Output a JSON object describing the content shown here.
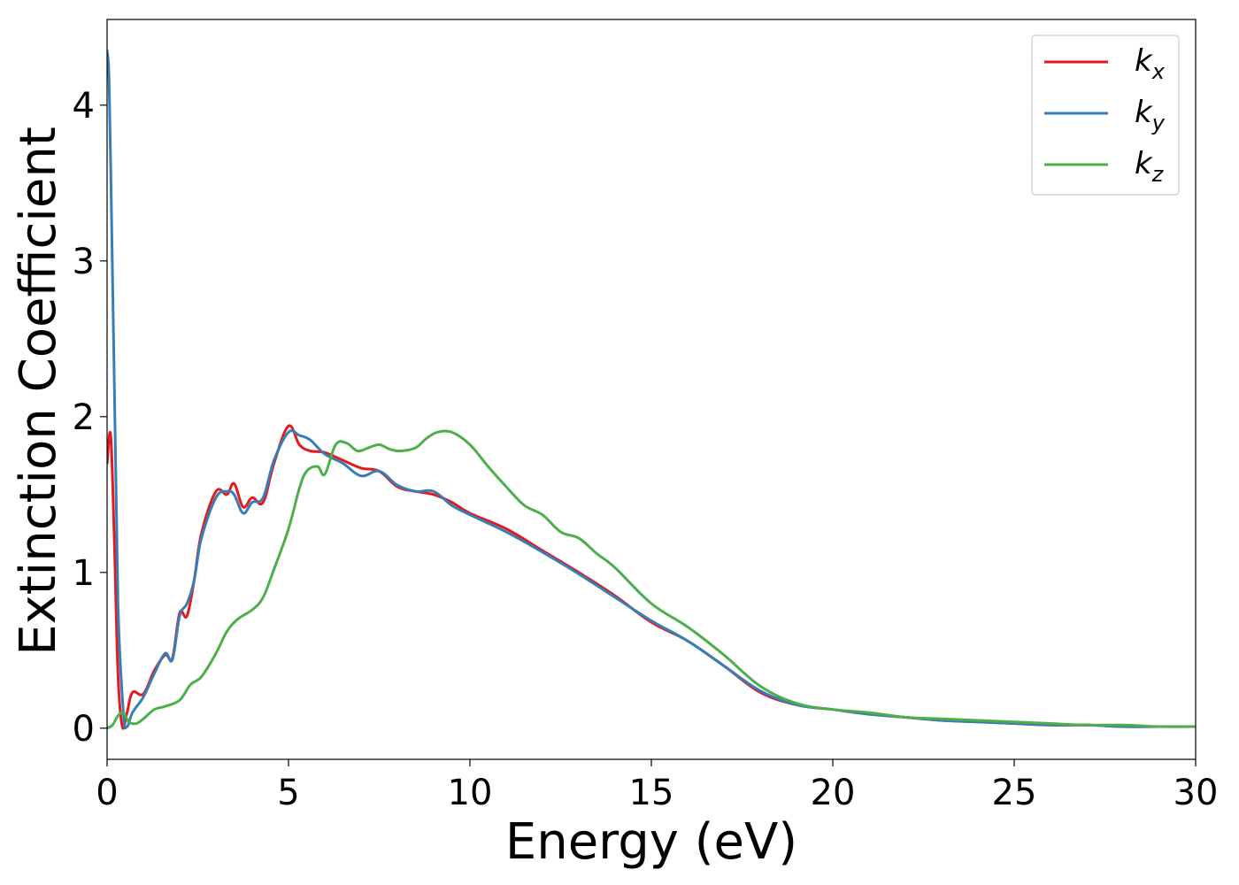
{
  "chart_data": {
    "type": "line",
    "title": "",
    "xlabel": "Energy (eV)",
    "ylabel": "Extinction Coefficient",
    "xlim": [
      0,
      30
    ],
    "ylim": [
      -0.2,
      4.55
    ],
    "xticks": [
      "0",
      "5",
      "10",
      "15",
      "20",
      "25",
      "30"
    ],
    "yticks": [
      "0",
      "1",
      "2",
      "3",
      "4"
    ],
    "grid": false,
    "legend_position": "top-right",
    "series": [
      {
        "name": "k_x",
        "label_base": "k",
        "label_sub": "x",
        "color": "#e41a1c",
        "x": [
          0,
          0.1,
          0.2,
          0.3,
          0.42,
          0.55,
          0.7,
          1.0,
          1.3,
          1.6,
          1.8,
          2.0,
          2.2,
          2.4,
          2.6,
          3.0,
          3.3,
          3.5,
          3.75,
          4.0,
          4.3,
          4.6,
          5.0,
          5.3,
          5.6,
          6.0,
          6.5,
          7.0,
          7.5,
          8.0,
          8.5,
          9.0,
          9.5,
          10.0,
          11.0,
          12.0,
          13.0,
          14.0,
          15.0,
          16.0,
          17.0,
          18.0,
          19.0,
          20.0,
          21.0,
          22.0,
          23.0,
          24.0,
          25.0,
          26.0,
          27.0,
          28.0,
          29.0,
          30.0
        ],
        "y": [
          1.7,
          1.88,
          1.2,
          0.35,
          0.01,
          0.1,
          0.23,
          0.22,
          0.37,
          0.47,
          0.45,
          0.74,
          0.72,
          0.95,
          1.25,
          1.52,
          1.5,
          1.57,
          1.42,
          1.48,
          1.45,
          1.7,
          1.94,
          1.82,
          1.78,
          1.77,
          1.72,
          1.67,
          1.65,
          1.55,
          1.52,
          1.5,
          1.45,
          1.38,
          1.28,
          1.14,
          1.0,
          0.85,
          0.68,
          0.56,
          0.4,
          0.23,
          0.15,
          0.12,
          0.09,
          0.07,
          0.05,
          0.04,
          0.03,
          0.02,
          0.02,
          0.01,
          0.01,
          0.01
        ]
      },
      {
        "name": "k_y",
        "label_base": "k",
        "label_sub": "y",
        "color": "#377eb8",
        "x": [
          0,
          0.05,
          0.1,
          0.2,
          0.3,
          0.45,
          0.55,
          0.7,
          1.0,
          1.3,
          1.6,
          1.8,
          2.0,
          2.2,
          2.4,
          2.6,
          3.0,
          3.3,
          3.5,
          3.75,
          4.0,
          4.3,
          4.6,
          5.0,
          5.3,
          5.6,
          6.0,
          6.5,
          7.0,
          7.5,
          8.0,
          8.5,
          9.0,
          9.5,
          10.0,
          11.0,
          12.0,
          13.0,
          14.0,
          15.0,
          16.0,
          17.0,
          18.0,
          19.0,
          20.0,
          21.0,
          22.0,
          23.0,
          24.0,
          25.0,
          26.0,
          27.0,
          28.0,
          29.0,
          30.0
        ],
        "y": [
          4.35,
          4.2,
          3.6,
          2.2,
          0.8,
          0.1,
          0.01,
          0.1,
          0.2,
          0.35,
          0.48,
          0.44,
          0.72,
          0.8,
          0.95,
          1.22,
          1.48,
          1.52,
          1.5,
          1.38,
          1.45,
          1.48,
          1.72,
          1.9,
          1.88,
          1.85,
          1.76,
          1.7,
          1.62,
          1.65,
          1.56,
          1.52,
          1.52,
          1.43,
          1.37,
          1.26,
          1.13,
          0.99,
          0.84,
          0.69,
          0.56,
          0.4,
          0.24,
          0.15,
          0.12,
          0.09,
          0.07,
          0.05,
          0.04,
          0.03,
          0.02,
          0.02,
          0.01,
          0.01,
          0.01
        ]
      },
      {
        "name": "k_z",
        "label_base": "k",
        "label_sub": "z",
        "color": "#4daf4a",
        "x": [
          0,
          0.15,
          0.3,
          0.45,
          0.6,
          0.8,
          1.0,
          1.3,
          1.6,
          2.0,
          2.3,
          2.6,
          3.0,
          3.3,
          3.6,
          4.0,
          4.3,
          4.6,
          5.0,
          5.3,
          5.5,
          5.8,
          6.0,
          6.3,
          6.6,
          6.9,
          7.2,
          7.5,
          7.8,
          8.1,
          8.5,
          8.8,
          9.1,
          9.5,
          10.0,
          10.5,
          11.0,
          11.5,
          12.0,
          12.5,
          13.0,
          13.5,
          14.0,
          15.0,
          16.0,
          17.0,
          18.0,
          19.0,
          20.0,
          21.0,
          22.0,
          23.0,
          24.0,
          25.0,
          26.0,
          27.0,
          28.0,
          29.0,
          30.0
        ],
        "y": [
          0.0,
          0.02,
          0.08,
          0.1,
          0.04,
          0.03,
          0.06,
          0.12,
          0.14,
          0.18,
          0.28,
          0.33,
          0.48,
          0.62,
          0.7,
          0.76,
          0.84,
          1.02,
          1.28,
          1.54,
          1.65,
          1.68,
          1.63,
          1.82,
          1.83,
          1.78,
          1.8,
          1.82,
          1.79,
          1.78,
          1.8,
          1.86,
          1.9,
          1.9,
          1.82,
          1.68,
          1.55,
          1.43,
          1.37,
          1.26,
          1.22,
          1.12,
          1.03,
          0.8,
          0.65,
          0.47,
          0.27,
          0.16,
          0.12,
          0.1,
          0.07,
          0.06,
          0.05,
          0.04,
          0.03,
          0.02,
          0.02,
          0.01,
          0.01
        ]
      }
    ]
  }
}
